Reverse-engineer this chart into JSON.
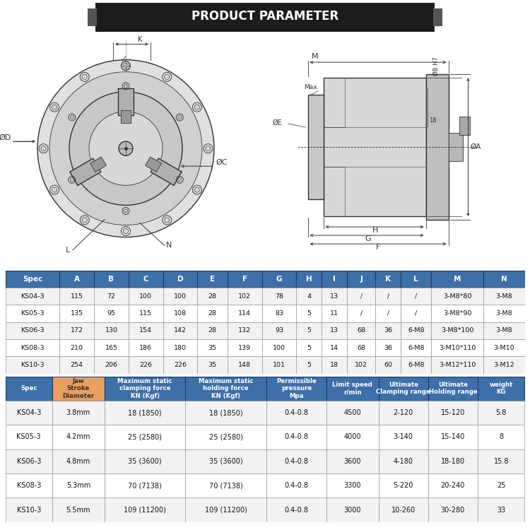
{
  "title": "PRODUCT PARAMETER",
  "bg_color": "#ffffff",
  "header_bg": "#3d6fa8",
  "jaw_bg": "#e8a060",
  "table1_cols": [
    "Spec",
    "A",
    "B",
    "C",
    "D",
    "E",
    "F",
    "G",
    "H",
    "I",
    "J",
    "K",
    "L",
    "M",
    "N"
  ],
  "table1_data": [
    [
      "KS04-3",
      "115",
      "72",
      "100",
      "100",
      "28",
      "102",
      "78",
      "4",
      "13",
      "/",
      "/",
      "/",
      "3-M8*80",
      "3-M8"
    ],
    [
      "KS05-3",
      "135",
      "95",
      "115",
      "108",
      "28",
      "114",
      "83",
      "5",
      "11",
      "/",
      "/",
      "/",
      "3-M8*90",
      "3-M8"
    ],
    [
      "KS06-3",
      "172",
      "130",
      "154",
      "142",
      "28",
      "132",
      "93",
      "5",
      "13",
      "68",
      "36",
      "6-M8",
      "3-M8*100",
      "3-M8"
    ],
    [
      "KS08-3",
      "210",
      "165",
      "186",
      "180",
      "35",
      "139",
      "100",
      "5",
      "14",
      "68",
      "36",
      "6-M8",
      "3-M10*110",
      "3-M10"
    ],
    [
      "KS10-3",
      "254",
      "206",
      "226",
      "226",
      "35",
      "148",
      "101",
      "5",
      "18",
      "102",
      "60",
      "6-M8",
      "3-M12*110",
      "3-M12"
    ]
  ],
  "table2_header": [
    "Spec",
    "Jaw\nStroke\nDiameter",
    "Maximum static\nclamping force\nKN (Kgf)",
    "Maximum static\nholding force\nKN (Kgf)",
    "Permissible\npressure\nMpa",
    "Limit speed\nr/min",
    "Ultimate\nClamping range",
    "Ultimate\nHolding range",
    "weight\nKG"
  ],
  "table2_data": [
    [
      "KS04-3",
      "3.8mm",
      "18 (1850)",
      "18 (1850)",
      "0.4-0.8",
      "4500",
      "2-120",
      "15-120",
      "5.8"
    ],
    [
      "KS05-3",
      "4.2mm",
      "25 (2580)",
      "25 (2580)",
      "0.4-0.8",
      "4000",
      "3-140",
      "15-140",
      "8"
    ],
    [
      "KS06-3",
      "4.8mm",
      "35 (3600)",
      "35 (3600)",
      "0.4-0.8",
      "3600",
      "4-180",
      "18-180",
      "15.8"
    ],
    [
      "KS08-3",
      "5.3mm",
      "70 (7138)",
      "70 (7138)",
      "0.4-0.8",
      "3300",
      "5-220",
      "20-240",
      "25"
    ],
    [
      "KS10-3",
      "5.5mm",
      "109 (11200)",
      "109 (11200)",
      "0.4-0.8",
      "3000",
      "10-260",
      "30-280",
      "33"
    ]
  ]
}
